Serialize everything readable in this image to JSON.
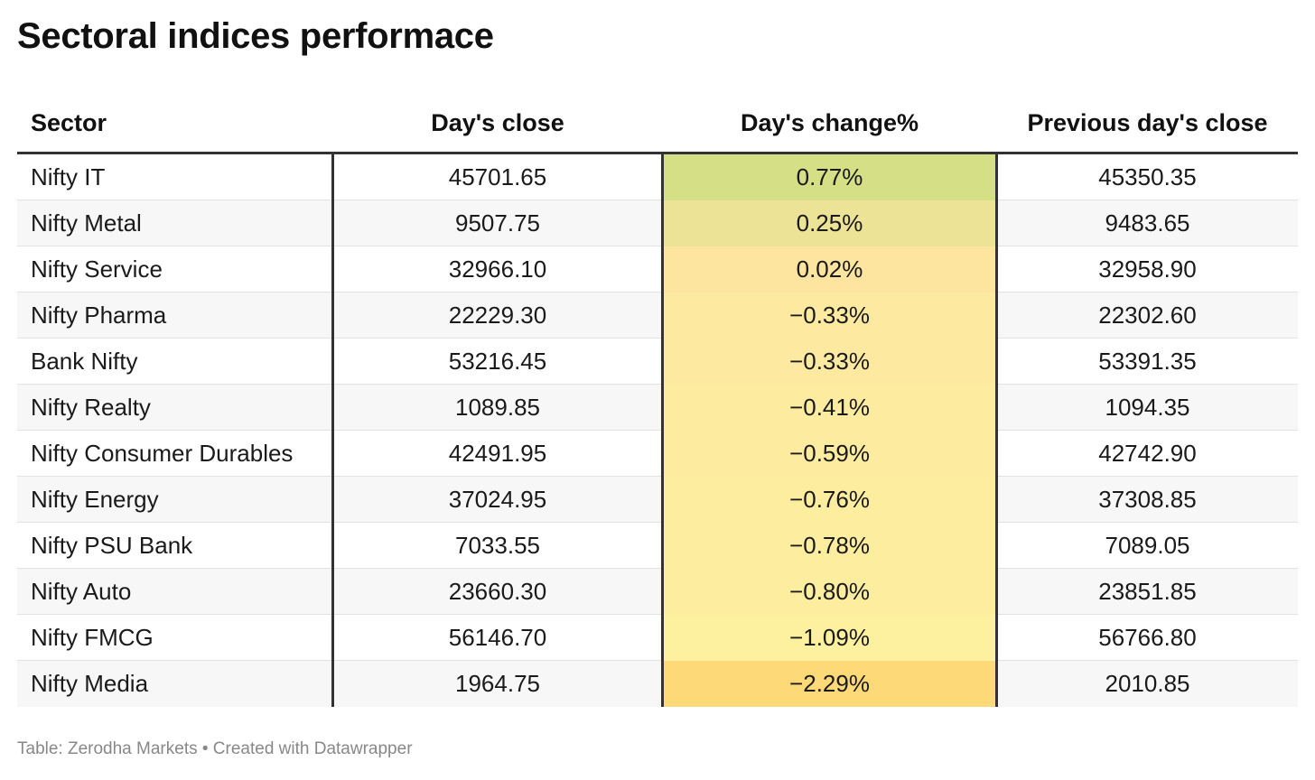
{
  "title": "Sectoral indices performace",
  "chart_data": {
    "type": "table",
    "title": "Sectoral indices performace",
    "columns": [
      "Sector",
      "Day's close",
      "Day's change%",
      "Previous day's close"
    ],
    "rows": [
      {
        "sector": "Nifty IT",
        "close": "45701.65",
        "change": "0.77%",
        "change_value": 0.77,
        "prev": "45350.35",
        "color": "#d4df86"
      },
      {
        "sector": "Nifty Metal",
        "close": "9507.75",
        "change": "0.25%",
        "change_value": 0.25,
        "prev": "9483.65",
        "color": "#ede396"
      },
      {
        "sector": "Nifty Service",
        "close": "32966.10",
        "change": "0.02%",
        "change_value": 0.02,
        "prev": "32958.90",
        "color": "#fde59f"
      },
      {
        "sector": "Nifty Pharma",
        "close": "22229.30",
        "change": "−0.33%",
        "change_value": -0.33,
        "prev": "22302.60",
        "color": "#fdeaa0"
      },
      {
        "sector": "Bank Nifty",
        "close": "53216.45",
        "change": "−0.33%",
        "change_value": -0.33,
        "prev": "53391.35",
        "color": "#fdeaa0"
      },
      {
        "sector": "Nifty Realty",
        "close": "1089.85",
        "change": "−0.41%",
        "change_value": -0.41,
        "prev": "1094.35",
        "color": "#fdeba0"
      },
      {
        "sector": "Nifty Consumer Durables",
        "close": "42491.95",
        "change": "−0.59%",
        "change_value": -0.59,
        "prev": "42742.90",
        "color": "#fdec9f"
      },
      {
        "sector": "Nifty Energy",
        "close": "37024.95",
        "change": "−0.76%",
        "change_value": -0.76,
        "prev": "37308.85",
        "color": "#fded9f"
      },
      {
        "sector": "Nifty PSU Bank",
        "close": "7033.55",
        "change": "−0.78%",
        "change_value": -0.78,
        "prev": "7089.05",
        "color": "#fded9f"
      },
      {
        "sector": "Nifty Auto",
        "close": "23660.30",
        "change": "−0.80%",
        "change_value": -0.8,
        "prev": "23851.85",
        "color": "#fdee9f"
      },
      {
        "sector": "Nifty FMCG",
        "close": "56146.70",
        "change": "−1.09%",
        "change_value": -1.09,
        "prev": "56766.80",
        "color": "#fdf09e"
      },
      {
        "sector": "Nifty Media",
        "close": "1964.75",
        "change": "−2.29%",
        "change_value": -2.29,
        "prev": "2010.85",
        "color": "#fdd977"
      }
    ]
  },
  "footer": {
    "source": "Table: Zerodha Markets • Created with Datawrapper"
  }
}
